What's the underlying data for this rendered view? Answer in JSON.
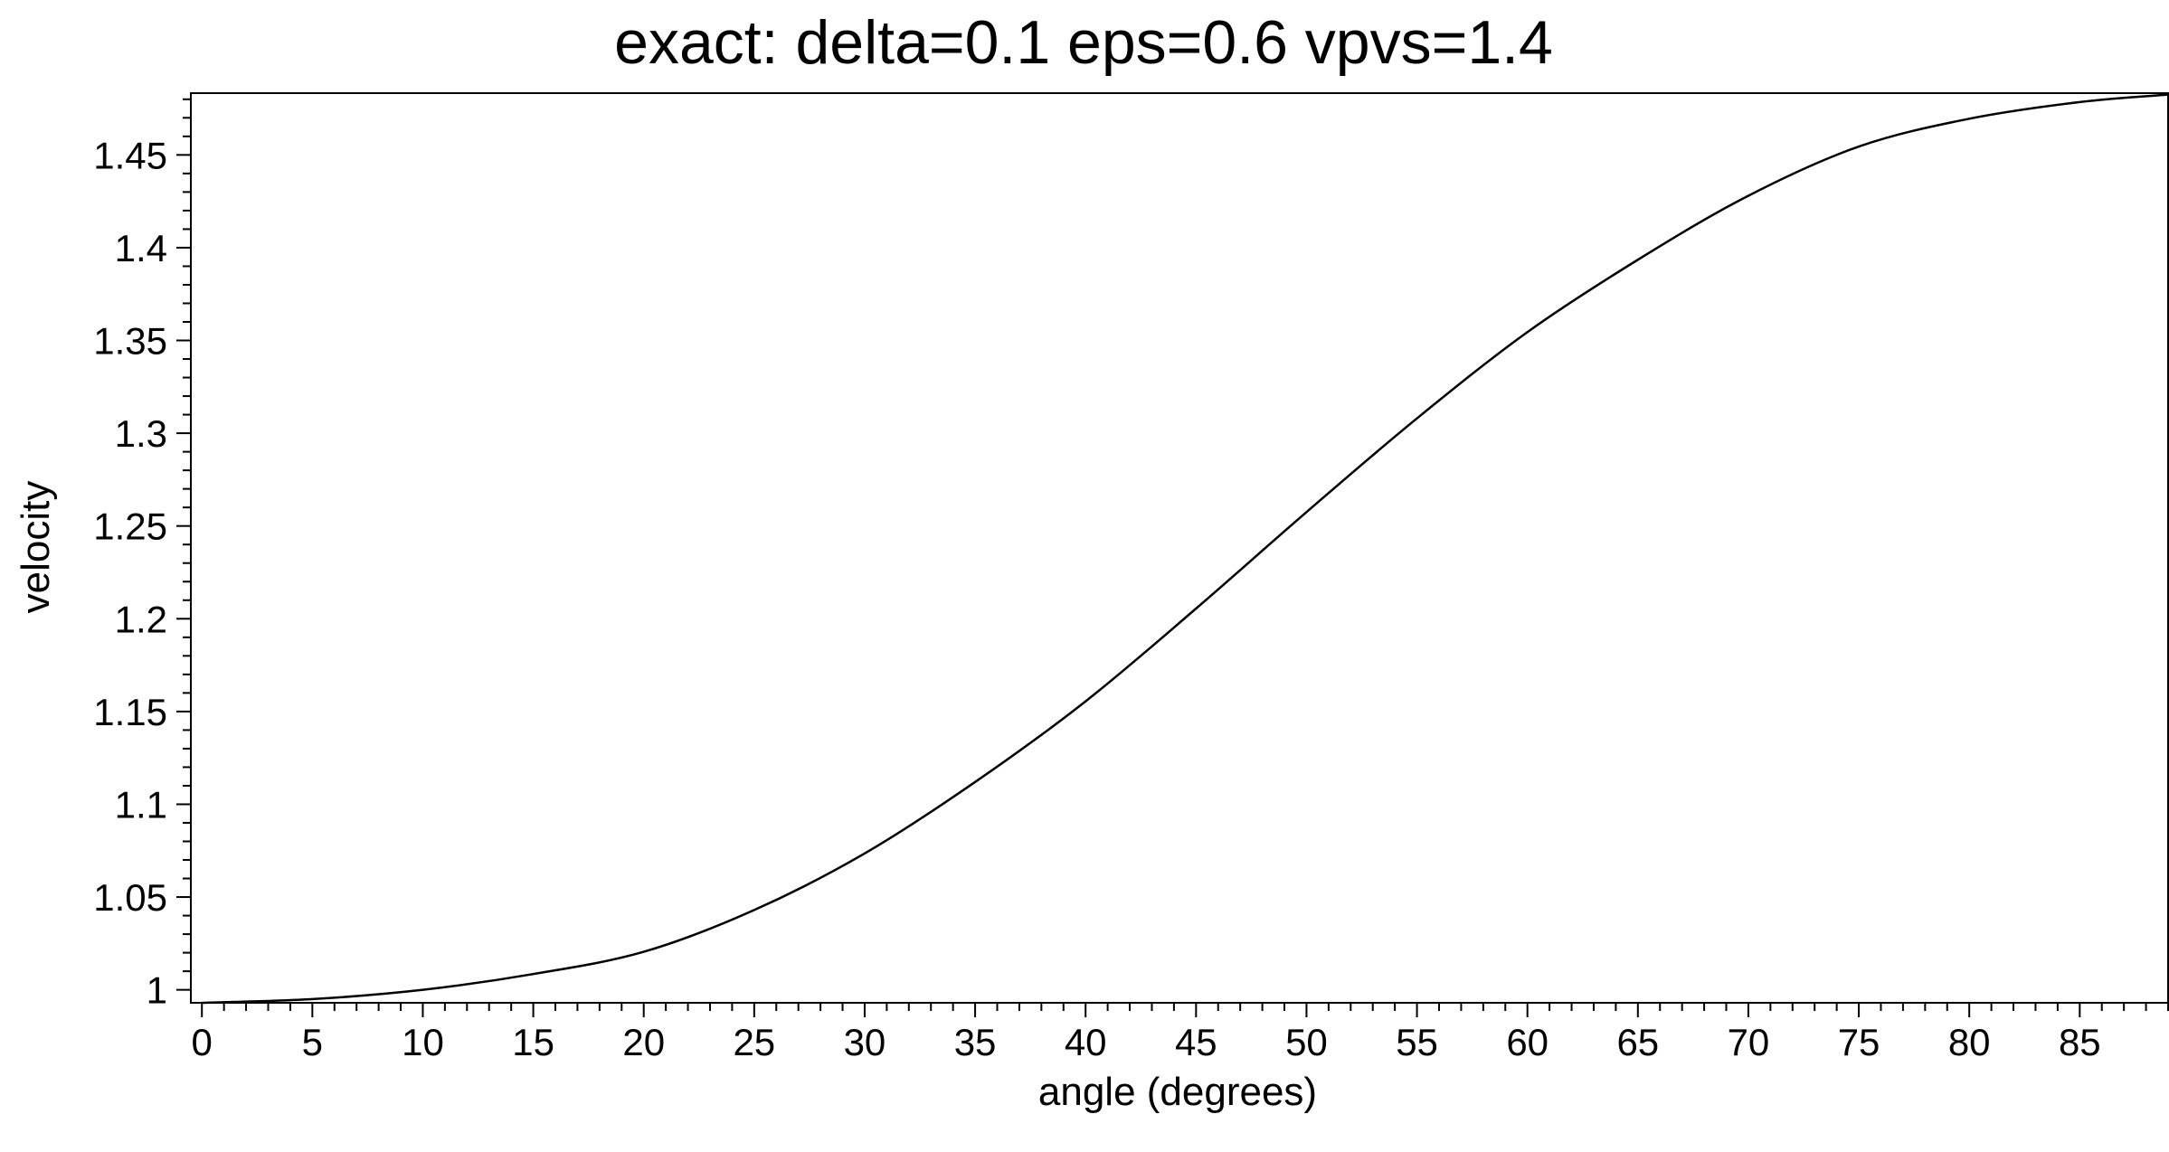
{
  "chart_data": {
    "type": "line",
    "title": "exact: delta=0.1 eps=0.6 vpvs=1.4",
    "xlabel": "angle (degrees)",
    "ylabel": "velocity",
    "xlim": [
      -0.5,
      89
    ],
    "ylim": [
      0.993,
      1.4833
    ],
    "xticks": [
      0,
      5,
      10,
      15,
      20,
      25,
      30,
      35,
      40,
      45,
      50,
      55,
      60,
      65,
      70,
      75,
      80,
      85
    ],
    "xtick_labels": [
      "0",
      "5",
      "10",
      "15",
      "20",
      "25",
      "30",
      "35",
      "40",
      "45",
      "50",
      "55",
      "60",
      "65",
      "70",
      "75",
      "80",
      "85"
    ],
    "yticks": [
      1,
      1.05,
      1.1,
      1.15,
      1.2,
      1.25,
      1.3,
      1.35,
      1.4,
      1.45
    ],
    "ytick_labels": [
      "1",
      "1.05",
      "1.1",
      "1.15",
      "1.2",
      "1.25",
      "1.3",
      "1.35",
      "1.4",
      "1.45"
    ],
    "x_minor_step": 1,
    "y_minor_step": 0.01,
    "grid": false,
    "legend": "none",
    "line_color": "#000000",
    "series": [
      {
        "x": [
          0,
          5,
          10,
          15,
          20,
          25,
          30,
          35,
          40,
          45,
          50,
          55,
          60,
          65,
          70,
          75,
          80,
          85,
          89
        ],
        "y": [
          0.993,
          0.995,
          1.0,
          1.0085,
          1.0205,
          1.043,
          1.0735,
          1.112,
          1.1555,
          1.2055,
          1.2575,
          1.308,
          1.3545,
          1.3935,
          1.428,
          1.4545,
          1.4695,
          1.4785,
          1.4825
        ]
      }
    ]
  }
}
